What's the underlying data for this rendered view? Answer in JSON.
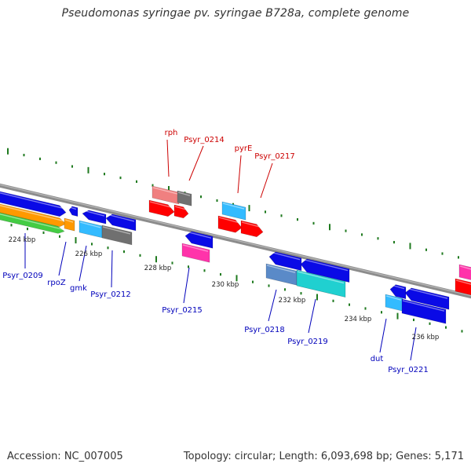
{
  "title": "Pseudomonas syringae pv. syringae B728a, complete genome",
  "footer": {
    "accession": "Accession: NC_007005",
    "stats": "Topology: circular; Length: 6,093,698 bp; Genes: 5,171"
  },
  "colors": {
    "backbone": "#8c8c8c",
    "label_red": "#cc0000",
    "label_blue": "#0000bb",
    "tick_green": "#1f7a1f",
    "tick_label": "#222222",
    "blue": "#0a0ae6",
    "gray": "#707070",
    "cyan": "#33bbff",
    "red": "#ff0000",
    "pink_light": "#f08080",
    "magenta": "#ff33aa",
    "steelblue": "#5a8ac8",
    "teal": "#20d0d0",
    "orange": "#ff9900",
    "green": "#44cc44"
  },
  "scale_labels": [
    "224 kbp",
    "226 kbp",
    "228 kbp",
    "230 kbp",
    "232 kbp",
    "234 kbp",
    "236 kbp"
  ],
  "forward_labels": [
    "rph",
    "Psyr_0214",
    "pyrE",
    "Psyr_0217"
  ],
  "reverse_labels": [
    "Psyr_0209",
    "rpoZ",
    "gmk",
    "Psyr_0212",
    "Psyr_0215",
    "Psyr_0218",
    "Psyr_0219",
    "dut",
    "Psyr_0221"
  ]
}
